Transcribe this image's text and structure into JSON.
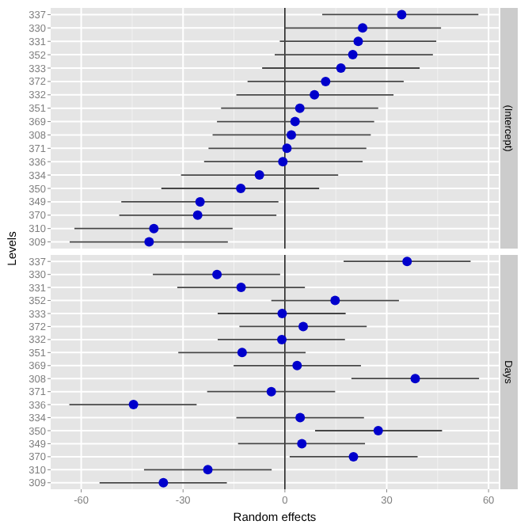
{
  "chart_data": [
    {
      "type": "scatter",
      "orientation": "horizontal",
      "title": "(Intercept)",
      "ylabel": "Levels",
      "categories": [
        "337",
        "330",
        "331",
        "352",
        "333",
        "372",
        "332",
        "351",
        "369",
        "308",
        "371",
        "336",
        "334",
        "350",
        "349",
        "370",
        "310",
        "309"
      ],
      "values": [
        34.4,
        22.9,
        21.6,
        20,
        16.5,
        12,
        8.7,
        4.4,
        3,
        1.9,
        0.6,
        -0.6,
        -7.5,
        -13,
        -25,
        -25.7,
        -38.6,
        -40
      ],
      "errors": [
        [
          11,
          57
        ],
        [
          0,
          46
        ],
        [
          -1.5,
          44.6
        ],
        [
          -3,
          43.6
        ],
        [
          -6.7,
          39.7
        ],
        [
          -11,
          35
        ],
        [
          -14.3,
          32
        ],
        [
          -18.8,
          27.5
        ],
        [
          -20,
          26.3
        ],
        [
          -21.3,
          25.3
        ],
        [
          -22.5,
          24
        ],
        [
          -23.8,
          22.9
        ],
        [
          -30.6,
          15.7
        ],
        [
          -36.4,
          10.1
        ],
        [
          -48.2,
          -1.9
        ],
        [
          -48.8,
          -2.5
        ],
        [
          -62,
          -15.4
        ],
        [
          -63.4,
          -16.8
        ]
      ],
      "color": "#0000cc",
      "marker": "circle",
      "xlim": [
        -69,
        63
      ],
      "xticks": [
        -60,
        -30,
        0,
        30,
        60
      ],
      "grid": true,
      "tick_labels": "y",
      "ref_lines": [
        {
          "axis": "x",
          "value": 0
        }
      ]
    },
    {
      "type": "scatter",
      "orientation": "horizontal",
      "title": "Days",
      "xlabel": "Random effects",
      "categories": [
        "337",
        "330",
        "331",
        "352",
        "333",
        "372",
        "332",
        "351",
        "369",
        "308",
        "371",
        "336",
        "334",
        "350",
        "349",
        "370",
        "310",
        "309"
      ],
      "values": [
        36,
        -20,
        -12.9,
        14.8,
        -0.8,
        5.4,
        -0.9,
        -12.6,
        3.6,
        38.4,
        -4,
        -44.6,
        4.5,
        27.5,
        5,
        20.2,
        -22.7,
        -35.8
      ],
      "errors": [
        [
          17.3,
          54.7
        ],
        [
          -38.9,
          -1.4
        ],
        [
          -31.7,
          5.9
        ],
        [
          -4,
          33.6
        ],
        [
          -19.8,
          17.9
        ],
        [
          -13.4,
          24.1
        ],
        [
          -19.8,
          17.7
        ],
        [
          -31.4,
          6.1
        ],
        [
          -15.1,
          22.4
        ],
        [
          19.6,
          57.2
        ],
        [
          -22.9,
          14.8
        ],
        [
          -63.5,
          -26
        ],
        [
          -14.3,
          23.3
        ],
        [
          8.9,
          46.3
        ],
        [
          -13.8,
          23.6
        ],
        [
          1.4,
          39.1
        ],
        [
          -41.5,
          -3.9
        ],
        [
          -54.6,
          -17.1
        ]
      ],
      "color": "#0000cc",
      "marker": "circle",
      "xlim": [
        -69,
        63
      ],
      "xticks": [
        -60,
        -30,
        0,
        30,
        60
      ],
      "grid": true,
      "ref_lines": [
        {
          "axis": "x",
          "value": 0
        }
      ]
    }
  ]
}
